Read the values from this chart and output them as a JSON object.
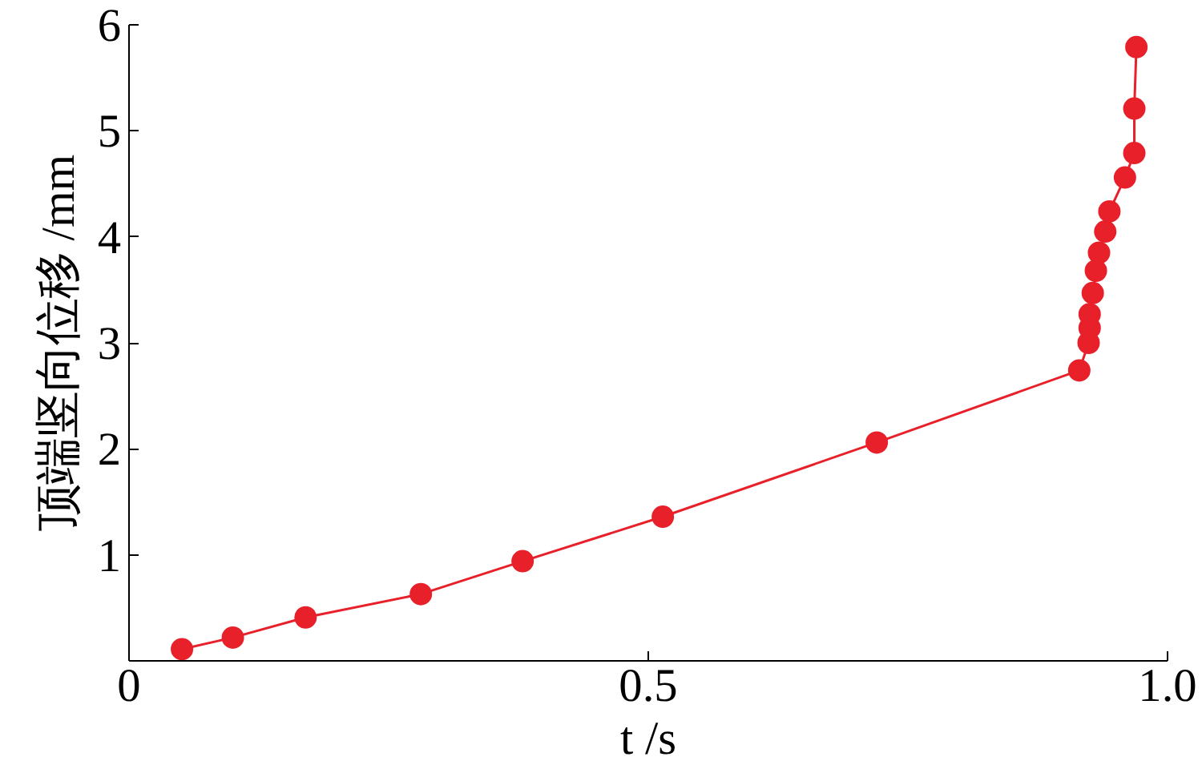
{
  "chart_data": {
    "type": "line",
    "xlabel": "t /s",
    "ylabel": "顶端竖向位移 /mm",
    "x": [
      0.051,
      0.1,
      0.17,
      0.281,
      0.379,
      0.514,
      0.72,
      0.915,
      0.924,
      0.925,
      0.925,
      0.928,
      0.931,
      0.934,
      0.94,
      0.944,
      0.959,
      0.968,
      0.968,
      0.97
    ],
    "series": [
      {
        "color": "#e8202a",
        "values": [
          0.11,
          0.22,
          0.41,
          0.63,
          0.94,
          1.36,
          2.06,
          2.74,
          3.0,
          3.14,
          3.27,
          3.47,
          3.68,
          3.85,
          4.05,
          4.24,
          4.56,
          4.79,
          5.21,
          5.79
        ]
      }
    ],
    "xlim": [
      0,
      1.0
    ],
    "ylim": [
      0,
      6
    ],
    "xticks": [
      0,
      0.5,
      {
        "value": 1.0,
        "label": "1.0"
      }
    ],
    "yticks": [
      1,
      2,
      3,
      4,
      5,
      6
    ],
    "marker": "circle",
    "line_style": "solid"
  }
}
